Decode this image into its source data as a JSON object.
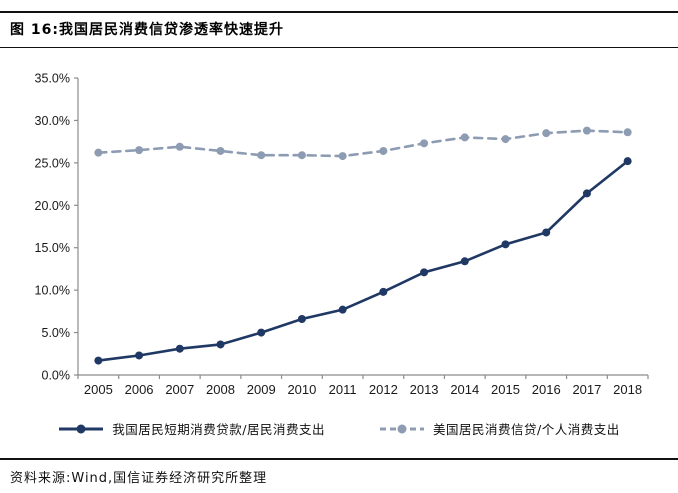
{
  "header": {
    "title": "图 16:我国居民消费信贷渗透率快速提升"
  },
  "footer": {
    "source": "资料来源:Wind,国信证券经济研究所整理"
  },
  "chart_data": {
    "type": "line",
    "title": "图 16:我国居民消费信贷渗透率快速提升",
    "categories": [
      "2005",
      "2006",
      "2007",
      "2008",
      "2009",
      "2010",
      "2011",
      "2012",
      "2013",
      "2014",
      "2015",
      "2016",
      "2017",
      "2018"
    ],
    "series": [
      {
        "name": "我国居民短期消费贷款/居民消费支出",
        "color": "#1f3864",
        "style": "solid",
        "marker": "circle",
        "values": [
          1.7,
          2.3,
          3.1,
          3.6,
          5.0,
          6.6,
          7.7,
          9.8,
          12.1,
          13.4,
          15.4,
          16.8,
          21.4,
          25.2
        ]
      },
      {
        "name": "美国居民消费信贷/个人消费支出",
        "color": "#8d9cb2",
        "style": "dashed",
        "marker": "circle",
        "values": [
          26.2,
          26.5,
          26.9,
          26.4,
          25.9,
          25.9,
          25.8,
          26.4,
          27.3,
          28.0,
          27.8,
          28.5,
          28.8,
          28.6
        ]
      }
    ],
    "xlabel": "",
    "ylabel": "",
    "ylim": [
      0,
      35
    ],
    "ytick_step": 5,
    "ytick_suffix": "%",
    "grid": false,
    "legend_position": "bottom",
    "axis_color": "#8c8c8c",
    "label_color": "#1a1a1a"
  }
}
